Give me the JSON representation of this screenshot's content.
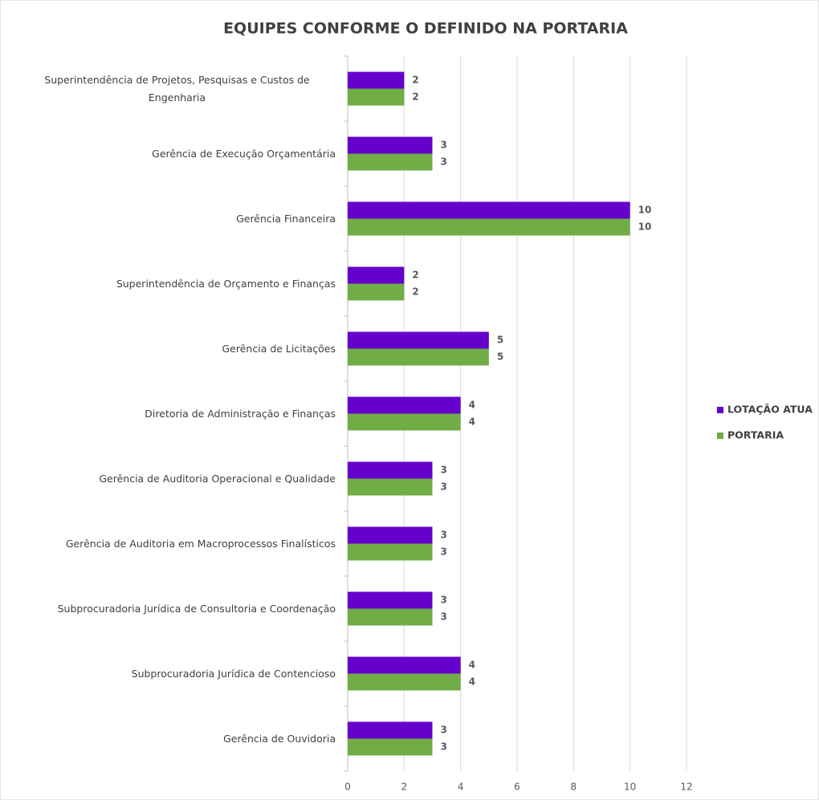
{
  "chart_data": {
    "type": "bar",
    "orientation": "horizontal",
    "title": "EQUIPES CONFORME O DEFINIDO NA PORTARIA",
    "categories": [
      "Superintendência de Projetos, Pesquisas e Custos de Engenharia",
      "Gerência de Execução Orçamentária",
      "Gerência Financeira",
      "Superintendência de Orçamento e Finanças",
      "Gerência de Licitações",
      "Diretoria de Administração e Finanças",
      "Gerência de Auditoria Operacional e Qualidade",
      "Gerência de Auditoria em Macroprocessos Finalísticos",
      "Subprocuradoria Jurídica de Consultoria e Coordenação",
      "Subprocuradoria Jurídica de Contencioso",
      "Gerência de Ouvidoria"
    ],
    "series": [
      {
        "name": "LOTAÇÃO ATUA",
        "color": "#6600cc",
        "values": [
          2,
          3,
          10,
          2,
          5,
          4,
          3,
          3,
          3,
          4,
          3
        ]
      },
      {
        "name": "PORTARIA",
        "color": "#70ad47",
        "values": [
          2,
          3,
          10,
          2,
          5,
          4,
          3,
          3,
          3,
          4,
          3
        ]
      }
    ],
    "xlim": [
      0,
      12
    ],
    "xticks": [
      0,
      2,
      4,
      6,
      8,
      10,
      12
    ],
    "grid": true,
    "legend": "right"
  }
}
